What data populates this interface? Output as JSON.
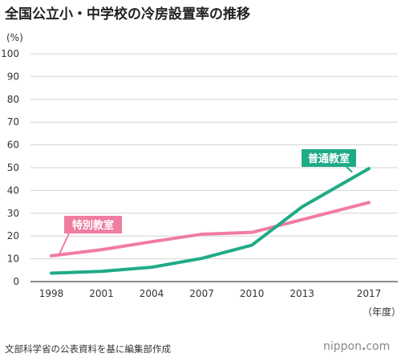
{
  "title": "全国公立小・中学校の冷房設置率の推移",
  "y_unit": "(%)",
  "x_unit": "（年度）",
  "source": "文部科学省の公表資料を基に編集部作成",
  "brand": {
    "prefix": "nippon",
    "dot": ".",
    "suffix": "com"
  },
  "colors": {
    "pink": "#f07ca0",
    "green": "#1fab87",
    "grid": "#d4d4d4",
    "axis": "#444444"
  },
  "chart_data": {
    "type": "line",
    "title": "全国公立小・中学校の冷房設置率の推移",
    "xlabel": "（年度）",
    "ylabel": "(%)",
    "x": [
      1998,
      2001,
      2004,
      2007,
      2010,
      2013,
      2017
    ],
    "ylim": [
      0,
      100
    ],
    "yticks": [
      0,
      10,
      20,
      30,
      40,
      50,
      60,
      70,
      80,
      90,
      100
    ],
    "grid": true,
    "series": [
      {
        "name": "普通教室",
        "color": "#1fab87",
        "values": [
          3.7,
          4.5,
          6.3,
          10.2,
          16.0,
          32.8,
          49.6
        ]
      },
      {
        "name": "特別教室",
        "color": "#f07ca0",
        "values": [
          11.3,
          14.0,
          17.5,
          20.8,
          21.6,
          27.2,
          34.7
        ]
      }
    ]
  }
}
